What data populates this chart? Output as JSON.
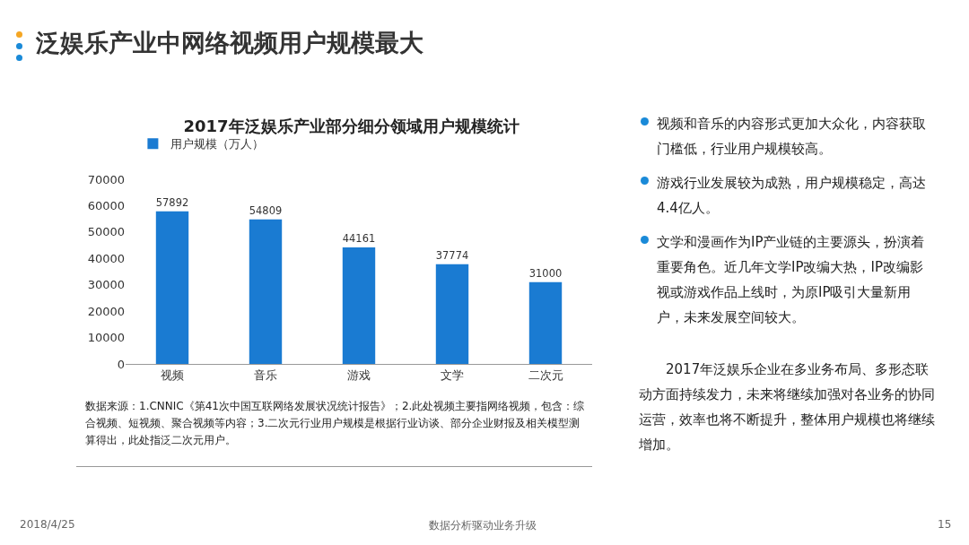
{
  "chart_data": {
    "type": "bar",
    "title": "2017年泛娱乐产业部分细分领域用户规模统计",
    "categories": [
      "视频",
      "音乐",
      "游戏",
      "文学",
      "二次元"
    ],
    "series": [
      {
        "name": "用户规模（万人）",
        "color": "#1a7bd2",
        "values": [
          57892,
          54809,
          44161,
          37774,
          31000
        ]
      }
    ],
    "ylim": [
      0,
      70000
    ],
    "yticks": [
      0,
      10000,
      20000,
      30000,
      40000,
      50000,
      60000,
      70000
    ],
    "grid": false,
    "legend": "top",
    "data_labels": true,
    "annotations": [
      "泛娱乐产业中网络视频用户规模最大",
      "数据来源：1.CNNIC《第41次中国互联网络发展状况统计报告》；2.此处视频主要指网络视频，包含：综合视频、短视频、聚合视频等内容；3.二次元行业用户规模是根据行业访谈、部分企业财报及相关模型测算得出，此处指泛二次元用户。",
      "视频和音乐的内容形式更加大众化，内容获取门槛低，行业用户规模较高。",
      "游戏行业发展较为成熟，用户规模稳定，高达4.4亿人。",
      "文学和漫画作为IP产业链的主要源头，扮演着重要角色。近几年文学IP改编大热，IP改编影视或游戏作品上线时，为原IP吸引大量新用户，未来发展空间较大。",
      "2017年泛娱乐企业在多业务布局、多形态联动方面持续发力，未来将继续加强对各业务的协同运营，效率也将不断提升，整体用户规模也将继续增加。",
      "2018/4/25",
      "数据分析驱动业务升级",
      "15"
    ]
  }
}
